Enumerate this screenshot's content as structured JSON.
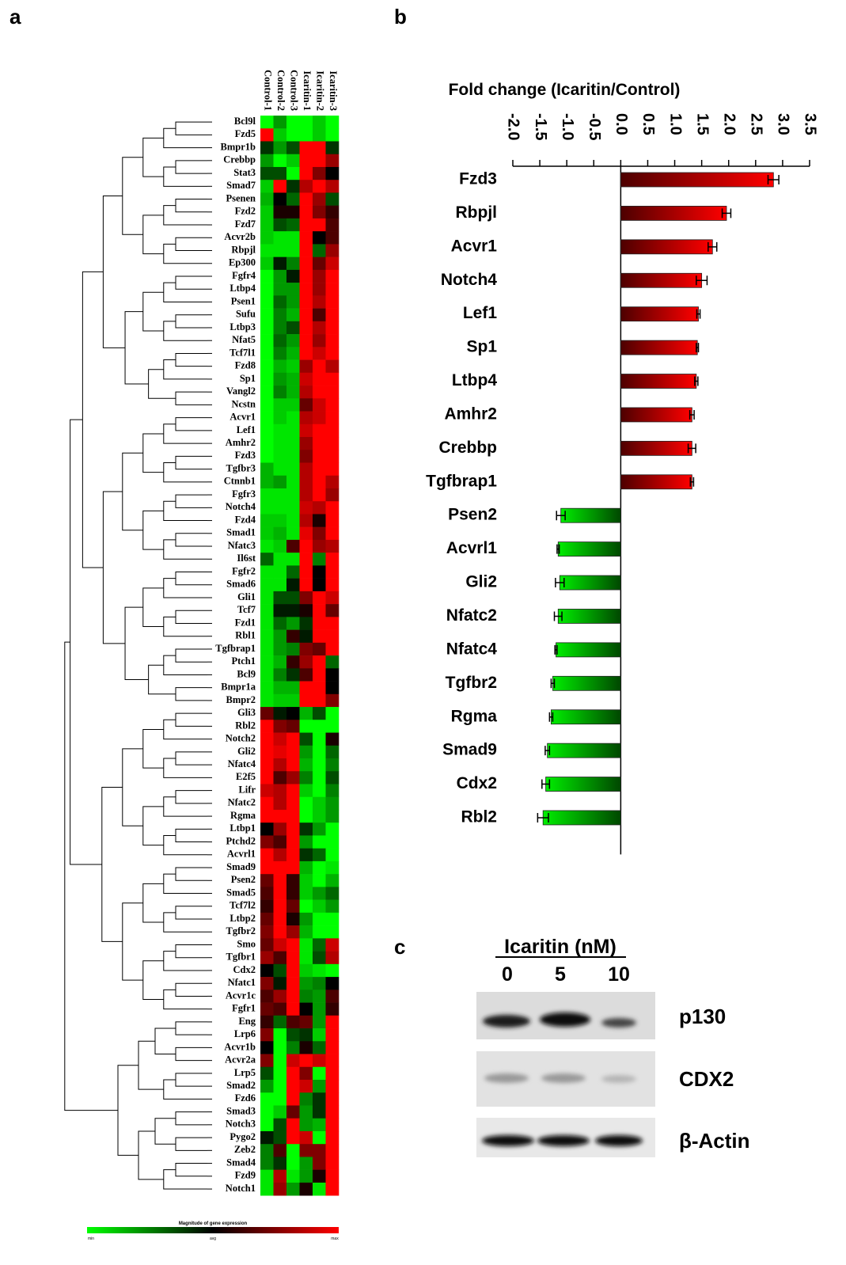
{
  "chart_data": [
    {
      "type": "heatmap",
      "panel": "a",
      "columns": [
        "Control-1",
        "Control-2",
        "Control-3",
        "Icaritin-1",
        "Icaritin-2",
        "Icaritin-3"
      ],
      "rows": [
        "Bcl9l",
        "Fzd5",
        "Bmpr1b",
        "Crebbp",
        "Stat3",
        "Smad7",
        "Psenen",
        "Fzd2",
        "Fzd7",
        "Acvr2b",
        "Rbpjl",
        "Ep300",
        "Fgfr4",
        "Ltbp4",
        "Psen1",
        "Sufu",
        "Ltbp3",
        "Nfat5",
        "Tcf7l1",
        "Fzd8",
        "Sp1",
        "Vangl2",
        "Ncstn",
        "Acvr1",
        "Lef1",
        "Amhr2",
        "Fzd3",
        "Tgfbr3",
        "Ctnnb1",
        "Fgfr3",
        "Notch4",
        "Fzd4",
        "Smad1",
        "Nfatc3",
        "Il6st",
        "Fgfr2",
        "Smad6",
        "Gli1",
        "Tcf7",
        "Fzd1",
        "Rbl1",
        "Tgfbrap1",
        "Ptch1",
        "Bcl9",
        "Bmpr1a",
        "Bmpr2",
        "Gli3",
        "Rbl2",
        "Notch2",
        "Gli2",
        "Nfatc4",
        "E2f5",
        "Lifr",
        "Nfatc2",
        "Rgma",
        "Ltbp1",
        "Ptchd2",
        "Acvrl1",
        "Smad9",
        "Psen2",
        "Smad5",
        "Tcf7l2",
        "Ltbp2",
        "Tgfbr2",
        "Smo",
        "Tgfbr1",
        "Cdx2",
        "Nfatc1",
        "Acvr1c",
        "Fgfr1",
        "Eng",
        "Lrp6",
        "Acvr1b",
        "Acvr2a",
        "Lrp5",
        "Smad2",
        "Fzd6",
        "Smad3",
        "Notch3",
        "Pygo2",
        "Zeb2",
        "Smad4",
        "Fzd9",
        "Notch1"
      ],
      "values": [
        [
          -1,
          -0.6,
          -1,
          -1,
          -0.8,
          -1
        ],
        [
          1,
          -0.8,
          -1,
          -1,
          -0.8,
          -1
        ],
        [
          -0.2,
          -0.6,
          -0.3,
          1,
          1,
          -0.2
        ],
        [
          -0.6,
          -1,
          -0.8,
          1,
          1,
          0.6
        ],
        [
          -0.3,
          -0.3,
          -1,
          1,
          0.5,
          0
        ],
        [
          -0.8,
          1,
          -0.2,
          0.7,
          1,
          0.7
        ],
        [
          -0.7,
          0,
          -0.4,
          1,
          0.6,
          -0.3
        ],
        [
          -0.8,
          0.1,
          0.1,
          1,
          0.5,
          0.2
        ],
        [
          -0.8,
          -0.3,
          -0.4,
          1,
          1,
          0.3
        ],
        [
          -0.8,
          -0.9,
          -0.9,
          1,
          0,
          0.3
        ],
        [
          -0.9,
          -0.9,
          -0.9,
          1,
          -0.4,
          0.6
        ],
        [
          -0.8,
          -0.1,
          -0.5,
          1,
          0.4,
          0.8
        ],
        [
          -1,
          -0.6,
          -0.1,
          1,
          0.6,
          1
        ],
        [
          -1,
          -0.6,
          -0.6,
          1,
          0.6,
          1
        ],
        [
          -1,
          -0.4,
          -0.6,
          1,
          0.7,
          1
        ],
        [
          -1,
          -0.5,
          -0.7,
          1,
          0.3,
          1
        ],
        [
          -1,
          -0.5,
          -0.3,
          1,
          0.7,
          1
        ],
        [
          -1,
          -0.4,
          -0.6,
          1,
          0.6,
          1
        ],
        [
          -1,
          -0.5,
          -0.7,
          1,
          0.8,
          1
        ],
        [
          -1,
          -0.7,
          -0.8,
          0.6,
          1,
          0.7
        ],
        [
          -1,
          -0.6,
          -0.7,
          0.8,
          1,
          1
        ],
        [
          -1,
          -0.5,
          -0.7,
          0.7,
          1,
          1
        ],
        [
          -1,
          -0.8,
          -0.8,
          0.4,
          0.8,
          1
        ],
        [
          -1,
          -0.8,
          -0.9,
          0.7,
          0.8,
          1
        ],
        [
          -1,
          -0.9,
          -0.9,
          0.8,
          1,
          1
        ],
        [
          -1,
          -0.9,
          -0.9,
          0.6,
          1,
          1
        ],
        [
          -1,
          -0.9,
          -0.9,
          0.5,
          1,
          1
        ],
        [
          -0.7,
          -0.9,
          -0.9,
          0.7,
          1,
          1
        ],
        [
          -0.7,
          -0.6,
          -0.9,
          0.7,
          1,
          0.7
        ],
        [
          -0.9,
          -0.9,
          -0.9,
          0.7,
          1,
          0.6
        ],
        [
          -0.9,
          -0.9,
          -0.9,
          0.8,
          0.7,
          1
        ],
        [
          -0.8,
          -0.8,
          -0.9,
          0.7,
          0.1,
          1
        ],
        [
          -0.8,
          -0.7,
          -0.9,
          0.9,
          0.5,
          1
        ],
        [
          -0.9,
          -0.8,
          0.3,
          1,
          0.6,
          0.7
        ],
        [
          -0.4,
          -0.9,
          -0.9,
          1,
          -0.5,
          1
        ],
        [
          -0.9,
          -0.9,
          -0.4,
          1,
          0,
          1
        ],
        [
          -0.9,
          -0.9,
          -0.1,
          1,
          0,
          1
        ],
        [
          -0.9,
          -0.3,
          -0.3,
          0.5,
          1,
          0.8
        ],
        [
          -0.9,
          -0.1,
          -0.1,
          0.1,
          1,
          0.4
        ],
        [
          -0.9,
          -0.4,
          -0.6,
          -0.2,
          1,
          1
        ],
        [
          -0.9,
          -0.6,
          0.2,
          -0.1,
          1,
          1
        ],
        [
          -0.9,
          -0.6,
          -0.5,
          0.5,
          0.4,
          1
        ],
        [
          -0.9,
          -0.7,
          0.2,
          0.6,
          1,
          -0.4
        ],
        [
          -0.9,
          -0.5,
          -0.2,
          0.3,
          1,
          0
        ],
        [
          -0.9,
          -0.7,
          -0.7,
          1,
          1,
          0
        ],
        [
          -0.9,
          -0.8,
          -0.8,
          1,
          1,
          0.5
        ],
        [
          0.4,
          -0.1,
          0,
          -0.7,
          -0.3,
          -1
        ],
        [
          1,
          0.5,
          0.4,
          -1,
          -1,
          -1
        ],
        [
          1,
          0.8,
          1,
          -0.3,
          -1,
          0.1
        ],
        [
          1,
          0.9,
          1,
          -0.6,
          -1,
          -0.4
        ],
        [
          1,
          0.7,
          1,
          -0.7,
          -1,
          -0.5
        ],
        [
          1,
          0.3,
          0.6,
          -0.5,
          -1,
          -0.3
        ],
        [
          0.8,
          0.7,
          1,
          -0.8,
          -1,
          -0.5
        ],
        [
          1,
          0.7,
          1,
          -1,
          -0.8,
          -0.6
        ],
        [
          1,
          1,
          1,
          -1,
          -0.8,
          -0.6
        ],
        [
          0,
          0.6,
          1,
          -0.2,
          -0.6,
          -1
        ],
        [
          0.5,
          0.3,
          1,
          -0.6,
          -1,
          -1
        ],
        [
          1,
          0.7,
          1,
          -0.2,
          -0.4,
          -1
        ],
        [
          1,
          1,
          1,
          -0.7,
          -1,
          -0.9
        ],
        [
          0.4,
          1,
          0.2,
          -0.8,
          -1,
          -0.7
        ],
        [
          0.3,
          1,
          0.2,
          -0.8,
          -0.6,
          -0.4
        ],
        [
          0.2,
          1,
          0.4,
          -1,
          -0.8,
          -0.6
        ],
        [
          0.4,
          1,
          0.1,
          -0.6,
          -1,
          -1
        ],
        [
          0.5,
          1,
          0.6,
          -0.7,
          -1,
          -1
        ],
        [
          0.4,
          0.8,
          1,
          -0.9,
          -0.4,
          0.8
        ],
        [
          0.6,
          0.3,
          1,
          -0.9,
          -0.3,
          0.7
        ],
        [
          0,
          -0.3,
          1,
          -0.8,
          -0.9,
          -1
        ],
        [
          0.5,
          -0.1,
          1,
          -0.6,
          -0.5,
          0
        ],
        [
          0.3,
          0.6,
          1,
          -0.5,
          -0.6,
          0.3
        ],
        [
          0.4,
          0.3,
          1,
          0,
          -0.6,
          0.2
        ],
        [
          0.2,
          -0.4,
          0.3,
          0.4,
          -0.6,
          1
        ],
        [
          0.5,
          -1,
          -0.3,
          -0.2,
          -0.8,
          1
        ],
        [
          0,
          -1,
          -0.5,
          0.1,
          -0.4,
          1
        ],
        [
          0.5,
          -1,
          0.8,
          1,
          0.8,
          1
        ],
        [
          -0.3,
          -1,
          1,
          0.5,
          -1,
          1
        ],
        [
          -0.6,
          -1,
          1,
          0.8,
          -0.6,
          1
        ],
        [
          -1,
          -1,
          1,
          -0.5,
          -0.2,
          1
        ],
        [
          -1,
          -0.8,
          0.4,
          -0.6,
          -0.2,
          1
        ],
        [
          -1,
          -0.3,
          1,
          -0.6,
          -0.7,
          1
        ],
        [
          -0.1,
          -0.3,
          1,
          0.8,
          -1,
          1
        ],
        [
          -0.5,
          0.3,
          -1,
          0.5,
          0.5,
          1
        ],
        [
          -0.5,
          -0.2,
          -1,
          -0.6,
          0.5,
          1
        ],
        [
          -0.9,
          0.7,
          -0.9,
          -0.6,
          0.1,
          1
        ],
        [
          -0.9,
          0.6,
          -0.6,
          0.1,
          -0.9,
          1
        ]
      ],
      "vlim": [
        -1,
        1
      ],
      "color_low": "#00ff00",
      "color_mid": "#000000",
      "color_high": "#ff0000",
      "legend_title": "Magnitude of gene expression",
      "legend_labels": [
        "min",
        "avg",
        "max"
      ]
    },
    {
      "type": "bar",
      "orientation": "horizontal",
      "panel": "b",
      "xlabel": "Fold change (Icaritin/Control)",
      "categories": [
        "Fzd3",
        "Rbpjl",
        "Acvr1",
        "Notch4",
        "Lef1",
        "Sp1",
        "Ltbp4",
        "Amhr2",
        "Crebbp",
        "Tgfbrap1",
        "Psen2",
        "Acvrl1",
        "Gli2",
        "Nfatc2",
        "Nfatc4",
        "Tgfbr2",
        "Rgma",
        "Smad9",
        "Cdx2",
        "Rbl2"
      ],
      "values": [
        2.83,
        1.96,
        1.7,
        1.5,
        1.44,
        1.42,
        1.4,
        1.32,
        1.32,
        1.32,
        -1.11,
        -1.16,
        -1.13,
        -1.16,
        -1.2,
        -1.26,
        -1.29,
        -1.36,
        -1.39,
        -1.44
      ],
      "errors": [
        0.1,
        0.08,
        0.08,
        0.1,
        0.03,
        0.02,
        0.03,
        0.04,
        0.07,
        0.03,
        0.08,
        0.02,
        0.08,
        0.07,
        0.02,
        0.03,
        0.03,
        0.04,
        0.07,
        0.1
      ],
      "xlim": [
        -2,
        3.5
      ],
      "xticks": [
        {
          "value": -2,
          "label": "-2.0"
        },
        -1.5,
        {
          "value": -1,
          "label": "-1.0"
        },
        -0.5,
        {
          "value": 0,
          "label": "0.0"
        },
        0.5,
        {
          "value": 1,
          "label": "1.0"
        },
        1.5,
        {
          "value": 2,
          "label": "2.0"
        },
        2.5,
        {
          "value": 3,
          "label": "3.0"
        },
        3.5
      ],
      "pos_color": "#ff0000",
      "neg_color": "#00ee00"
    }
  ],
  "blot": {
    "panel": "c",
    "treatment": "Icaritin (nM)",
    "doses": [
      "0",
      "5",
      "10"
    ],
    "proteins": [
      "p130",
      "CDX2",
      "β-Actin"
    ]
  }
}
